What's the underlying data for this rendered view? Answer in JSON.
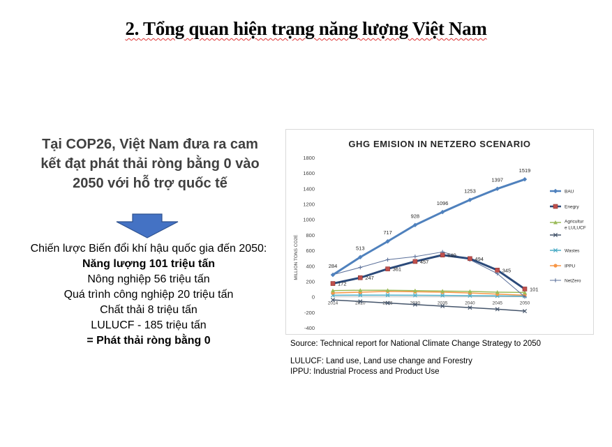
{
  "slide": {
    "title": "2. Tổng quan hiện trạng năng lượng Việt Nam",
    "headline": "Tại COP26, Việt Nam đưa ra cam kết đạt phát thải ròng bằng 0 vào 2050 với hỗ trợ quốc tế",
    "strategy_lines": [
      "Chiến lược Biến đổi khí hậu quốc gia đến 2050:",
      "Năng lượng 101 triệu tấn",
      "Nông nghiệp 56 triệu tấn",
      "Quá trình công nghiệp 20 triệu tấn",
      "Chất thải 8 triệu tấn",
      "LULUCF - 185 triệu tấn",
      "= Phát thải ròng bằng 0"
    ],
    "source": "Source: Technical report for National Climate Change Strategy to 2050",
    "abbrev_lulucf": "LULUCF: Land use, Land use change and Forestry",
    "abbrev_ippu": "IPPU: Industrial Process and Product Use",
    "arrow_color": "#4472c4"
  },
  "chart_data": {
    "type": "line",
    "title": "GHG EMISION IN NETZERO SCENARIO",
    "ylabel": "MILLION TONS CO2E",
    "xlabel": "",
    "x": [
      "2014",
      "2020",
      "2025",
      "2030",
      "2035",
      "2040",
      "2045",
      "2050"
    ],
    "ylim": [
      -400,
      1800
    ],
    "yticks": [
      -400,
      -200,
      0,
      200,
      400,
      600,
      800,
      1000,
      1200,
      1400,
      1600,
      1800
    ],
    "grid": false,
    "legend_position": "right",
    "series": [
      {
        "name": "BAU",
        "color": "#4f81bd",
        "marker": "diamond",
        "width": 3,
        "values": [
          284,
          513,
          717,
          928,
          1096,
          1253,
          1397,
          1519
        ],
        "labels": [
          "284",
          "513",
          "717",
          "928",
          "1096",
          "1253",
          "1397",
          "1519"
        ]
      },
      {
        "name": "Enegry",
        "color": "#2b4a7a",
        "marker": "square",
        "width": 3,
        "values": [
          172,
          247,
          361,
          457,
          540,
          494,
          345,
          101
        ],
        "labels": [
          "172",
          "247",
          "361",
          "457",
          "540",
          "494",
          "345",
          "101"
        ]
      },
      {
        "name": "Agricultur e LULUCF",
        "legend_lines": [
          "Agricultur",
          "e LULUCF"
        ],
        "color": "#9bbb59",
        "marker": "triangle",
        "width": 1.5,
        "values": [
          80,
          85,
          85,
          80,
          75,
          70,
          60,
          56
        ]
      },
      {
        "name": "",
        "color": "#44546a",
        "marker": "x",
        "width": 1.5,
        "values": [
          -40,
          -60,
          -80,
          -100,
          -120,
          -140,
          -160,
          -185
        ]
      },
      {
        "name": "Wastes",
        "color": "#4bacc6",
        "marker": "x",
        "width": 1.5,
        "values": [
          20,
          22,
          22,
          20,
          18,
          15,
          12,
          8
        ]
      },
      {
        "name": "IPPU",
        "color": "#f79646",
        "marker": "circle",
        "width": 1.5,
        "values": [
          50,
          60,
          70,
          65,
          60,
          50,
          35,
          20
        ]
      },
      {
        "name": "NetZero",
        "color": "#5a6f99",
        "marker": "plus",
        "width": 1,
        "values": [
          286,
          380,
          480,
          520,
          580,
          480,
          300,
          0
        ]
      }
    ]
  }
}
